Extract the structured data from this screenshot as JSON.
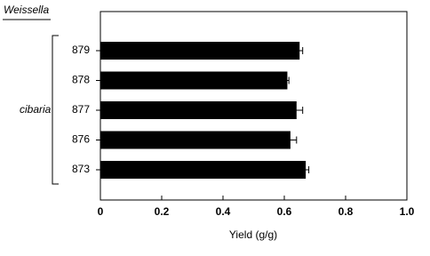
{
  "chart_data": {
    "type": "bar",
    "orientation": "horizontal",
    "genus": "Weissella",
    "species": "cibaria",
    "categories": [
      "879",
      "878",
      "877",
      "876",
      "873"
    ],
    "values": [
      0.65,
      0.61,
      0.64,
      0.62,
      0.67
    ],
    "errors": [
      0.01,
      0.005,
      0.02,
      0.02,
      0.01
    ],
    "color": "#000000",
    "xlabel": "Yield (g/g)",
    "xlim": [
      0,
      1
    ],
    "xticks": [
      0,
      0.2,
      0.4,
      0.6,
      0.8,
      {
        "value": 1,
        "label": "1.0"
      }
    ],
    "grid": false
  }
}
